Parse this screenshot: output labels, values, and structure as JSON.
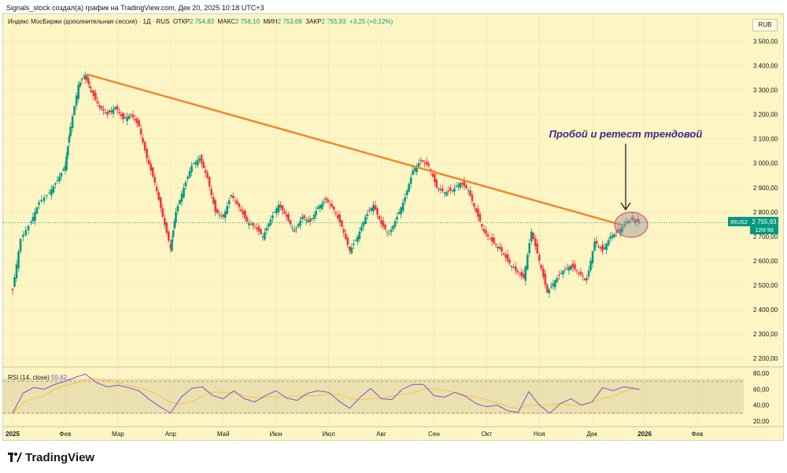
{
  "header": {
    "caption": "Signals_stock создал(а) график на TradingView.com, Дек 20, 2025 10:18 UTC+3"
  },
  "legend": {
    "symbol": "Индекс МосБиржи (дополнительная сессия) · 1Д · RUS",
    "open_label": "ОТКР",
    "open": "2 754,83",
    "high_label": "МАКС",
    "high": "2 756,10",
    "low_label": "МИН",
    "low": "2 753,69",
    "close_label": "ЗАКР",
    "close": "2 755,93",
    "change": "+3,25 (+0,12%)"
  },
  "currency": "RUB",
  "annotation": "Пробой и ретест трендовой",
  "price_tag": {
    "ticker": "IRUS2",
    "price": "2 755,93",
    "countdown": "12М 9d"
  },
  "rsi_legend": {
    "label": "RSI (14, close)",
    "value": "59,62"
  },
  "brand": "TradingView",
  "colors": {
    "background": "#fdf5c4",
    "up": "#089981",
    "down": "#f23645",
    "trendline": "#f0882c",
    "rsi": "#7e57c2",
    "rsi_ma": "#f5c542"
  },
  "chart_data": {
    "type": "candlestick",
    "title": "Индекс МосБиржи (дополнительная сессия)",
    "price_axis_ticks": [
      "3 500,00",
      "3 400,00",
      "3 300,00",
      "3 200,00",
      "3 100,00",
      "3 000,00",
      "2 900,00",
      "2 800,00",
      "2 700,00",
      "2 600,00",
      "2 500,00",
      "2 400,00",
      "2 300,00",
      "2 200,00"
    ],
    "price_axis_values": [
      3500,
      3400,
      3300,
      3200,
      3100,
      3000,
      2900,
      2800,
      2700,
      2600,
      2500,
      2400,
      2300,
      2200
    ],
    "ylim": [
      2175,
      3540
    ],
    "time_axis_ticks": [
      "2025",
      "Фев",
      "Мар",
      "Апр",
      "Май",
      "Июн",
      "Июл",
      "Авг",
      "Сен",
      "Окт",
      "Ноя",
      "Дек",
      "2026",
      "Фев"
    ],
    "time_axis_months": [
      0,
      1,
      2,
      3,
      4,
      5,
      6,
      7,
      8,
      9,
      10,
      11,
      12,
      13
    ],
    "xlim_months": [
      0,
      14
    ],
    "last_price": 2755.93,
    "close_series": [
      [
        0.0,
        2480
      ],
      [
        0.15,
        2690
      ],
      [
        0.35,
        2760
      ],
      [
        0.5,
        2840
      ],
      [
        0.7,
        2880
      ],
      [
        0.85,
        2930
      ],
      [
        1.0,
        2990
      ],
      [
        1.1,
        3150
      ],
      [
        1.25,
        3320
      ],
      [
        1.38,
        3360
      ],
      [
        1.5,
        3290
      ],
      [
        1.65,
        3230
      ],
      [
        1.8,
        3200
      ],
      [
        1.95,
        3230
      ],
      [
        2.1,
        3180
      ],
      [
        2.25,
        3200
      ],
      [
        2.4,
        3150
      ],
      [
        2.55,
        3020
      ],
      [
        2.7,
        2920
      ],
      [
        2.85,
        2780
      ],
      [
        3.0,
        2650
      ],
      [
        3.1,
        2800
      ],
      [
        3.25,
        2900
      ],
      [
        3.4,
        2990
      ],
      [
        3.55,
        3020
      ],
      [
        3.7,
        2940
      ],
      [
        3.85,
        2800
      ],
      [
        4.0,
        2780
      ],
      [
        4.15,
        2870
      ],
      [
        4.3,
        2820
      ],
      [
        4.45,
        2760
      ],
      [
        4.6,
        2740
      ],
      [
        4.75,
        2700
      ],
      [
        4.9,
        2770
      ],
      [
        5.05,
        2830
      ],
      [
        5.2,
        2780
      ],
      [
        5.35,
        2720
      ],
      [
        5.5,
        2780
      ],
      [
        5.65,
        2760
      ],
      [
        5.8,
        2820
      ],
      [
        5.95,
        2850
      ],
      [
        6.1,
        2810
      ],
      [
        6.25,
        2740
      ],
      [
        6.4,
        2640
      ],
      [
        6.55,
        2700
      ],
      [
        6.7,
        2780
      ],
      [
        6.85,
        2830
      ],
      [
        7.0,
        2750
      ],
      [
        7.15,
        2710
      ],
      [
        7.3,
        2780
      ],
      [
        7.45,
        2860
      ],
      [
        7.6,
        2970
      ],
      [
        7.75,
        3010
      ],
      [
        7.9,
        2990
      ],
      [
        8.05,
        2900
      ],
      [
        8.2,
        2880
      ],
      [
        8.35,
        2890
      ],
      [
        8.5,
        2920
      ],
      [
        8.65,
        2890
      ],
      [
        8.8,
        2800
      ],
      [
        8.95,
        2720
      ],
      [
        9.1,
        2680
      ],
      [
        9.25,
        2650
      ],
      [
        9.4,
        2600
      ],
      [
        9.55,
        2560
      ],
      [
        9.7,
        2530
      ],
      [
        9.85,
        2720
      ],
      [
        10.0,
        2600
      ],
      [
        10.15,
        2470
      ],
      [
        10.3,
        2520
      ],
      [
        10.45,
        2560
      ],
      [
        10.6,
        2580
      ],
      [
        10.75,
        2550
      ],
      [
        10.9,
        2520
      ],
      [
        11.05,
        2680
      ],
      [
        11.2,
        2640
      ],
      [
        11.35,
        2700
      ],
      [
        11.5,
        2720
      ],
      [
        11.65,
        2760
      ],
      [
        11.8,
        2770
      ],
      [
        11.9,
        2755.93
      ]
    ],
    "trendline": {
      "from": {
        "month": 1.4,
        "price": 3365
      },
      "to": {
        "month": 11.6,
        "price": 2745
      }
    },
    "rsi": {
      "name": "RSI (14, close)",
      "last": 59.62,
      "axis_ticks": [
        "80,00",
        "60,00",
        "40,00",
        "20,00"
      ],
      "axis_values": [
        80,
        60,
        40,
        20
      ],
      "band": [
        30,
        70
      ],
      "ylim": [
        15,
        85
      ],
      "series": [
        [
          0.0,
          30
        ],
        [
          0.2,
          55
        ],
        [
          0.4,
          62
        ],
        [
          0.6,
          60
        ],
        [
          0.8,
          66
        ],
        [
          1.0,
          70
        ],
        [
          1.2,
          75
        ],
        [
          1.38,
          79
        ],
        [
          1.6,
          68
        ],
        [
          1.8,
          63
        ],
        [
          2.0,
          65
        ],
        [
          2.2,
          62
        ],
        [
          2.4,
          58
        ],
        [
          2.6,
          47
        ],
        [
          2.8,
          38
        ],
        [
          3.0,
          30
        ],
        [
          3.2,
          50
        ],
        [
          3.4,
          61
        ],
        [
          3.6,
          63
        ],
        [
          3.8,
          52
        ],
        [
          4.0,
          48
        ],
        [
          4.2,
          58
        ],
        [
          4.4,
          48
        ],
        [
          4.6,
          44
        ],
        [
          4.8,
          52
        ],
        [
          5.0,
          58
        ],
        [
          5.2,
          49
        ],
        [
          5.4,
          46
        ],
        [
          5.6,
          55
        ],
        [
          5.8,
          58
        ],
        [
          6.0,
          56
        ],
        [
          6.2,
          45
        ],
        [
          6.4,
          36
        ],
        [
          6.6,
          50
        ],
        [
          6.8,
          61
        ],
        [
          7.0,
          48
        ],
        [
          7.2,
          47
        ],
        [
          7.4,
          60
        ],
        [
          7.6,
          66
        ],
        [
          7.8,
          66
        ],
        [
          8.0,
          52
        ],
        [
          8.2,
          50
        ],
        [
          8.4,
          56
        ],
        [
          8.6,
          51
        ],
        [
          8.8,
          42
        ],
        [
          9.0,
          38
        ],
        [
          9.2,
          40
        ],
        [
          9.4,
          33
        ],
        [
          9.6,
          31
        ],
        [
          9.8,
          57
        ],
        [
          10.0,
          40
        ],
        [
          10.2,
          30
        ],
        [
          10.4,
          42
        ],
        [
          10.6,
          48
        ],
        [
          10.8,
          40
        ],
        [
          11.0,
          44
        ],
        [
          11.2,
          62
        ],
        [
          11.4,
          58
        ],
        [
          11.6,
          63
        ],
        [
          11.8,
          61
        ],
        [
          11.9,
          59.62
        ]
      ]
    }
  }
}
